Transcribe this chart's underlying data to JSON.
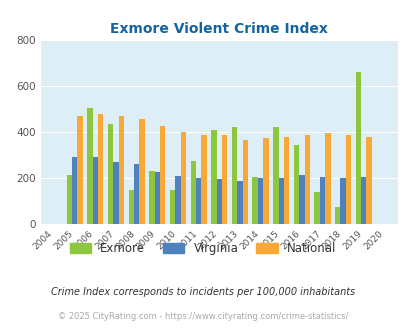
{
  "title": "Exmore Violent Crime Index",
  "years": [
    2004,
    2005,
    2006,
    2007,
    2008,
    2009,
    2010,
    2011,
    2012,
    2013,
    2014,
    2015,
    2016,
    2017,
    2018,
    2019,
    2020
  ],
  "exmore": [
    0,
    215,
    505,
    435,
    150,
    230,
    150,
    275,
    410,
    420,
    205,
    420,
    345,
    140,
    75,
    660,
    0
  ],
  "virginia": [
    0,
    290,
    290,
    270,
    260,
    228,
    210,
    200,
    195,
    190,
    200,
    200,
    215,
    205,
    200,
    207,
    0
  ],
  "national": [
    0,
    470,
    480,
    470,
    458,
    428,
    400,
    388,
    388,
    367,
    375,
    380,
    385,
    395,
    385,
    380,
    0
  ],
  "exmore_color": "#8dc63f",
  "virginia_color": "#4f81bd",
  "national_color": "#f6a937",
  "bg_color": "#ddeef6",
  "title_color": "#1464a0",
  "ylabel_max": 800,
  "yticks": [
    0,
    200,
    400,
    600,
    800
  ],
  "footnote1": "Crime Index corresponds to incidents per 100,000 inhabitants",
  "footnote2": "© 2025 CityRating.com - https://www.cityrating.com/crime-statistics/",
  "legend_labels": [
    "Exmore",
    "Virginia",
    "National"
  ]
}
